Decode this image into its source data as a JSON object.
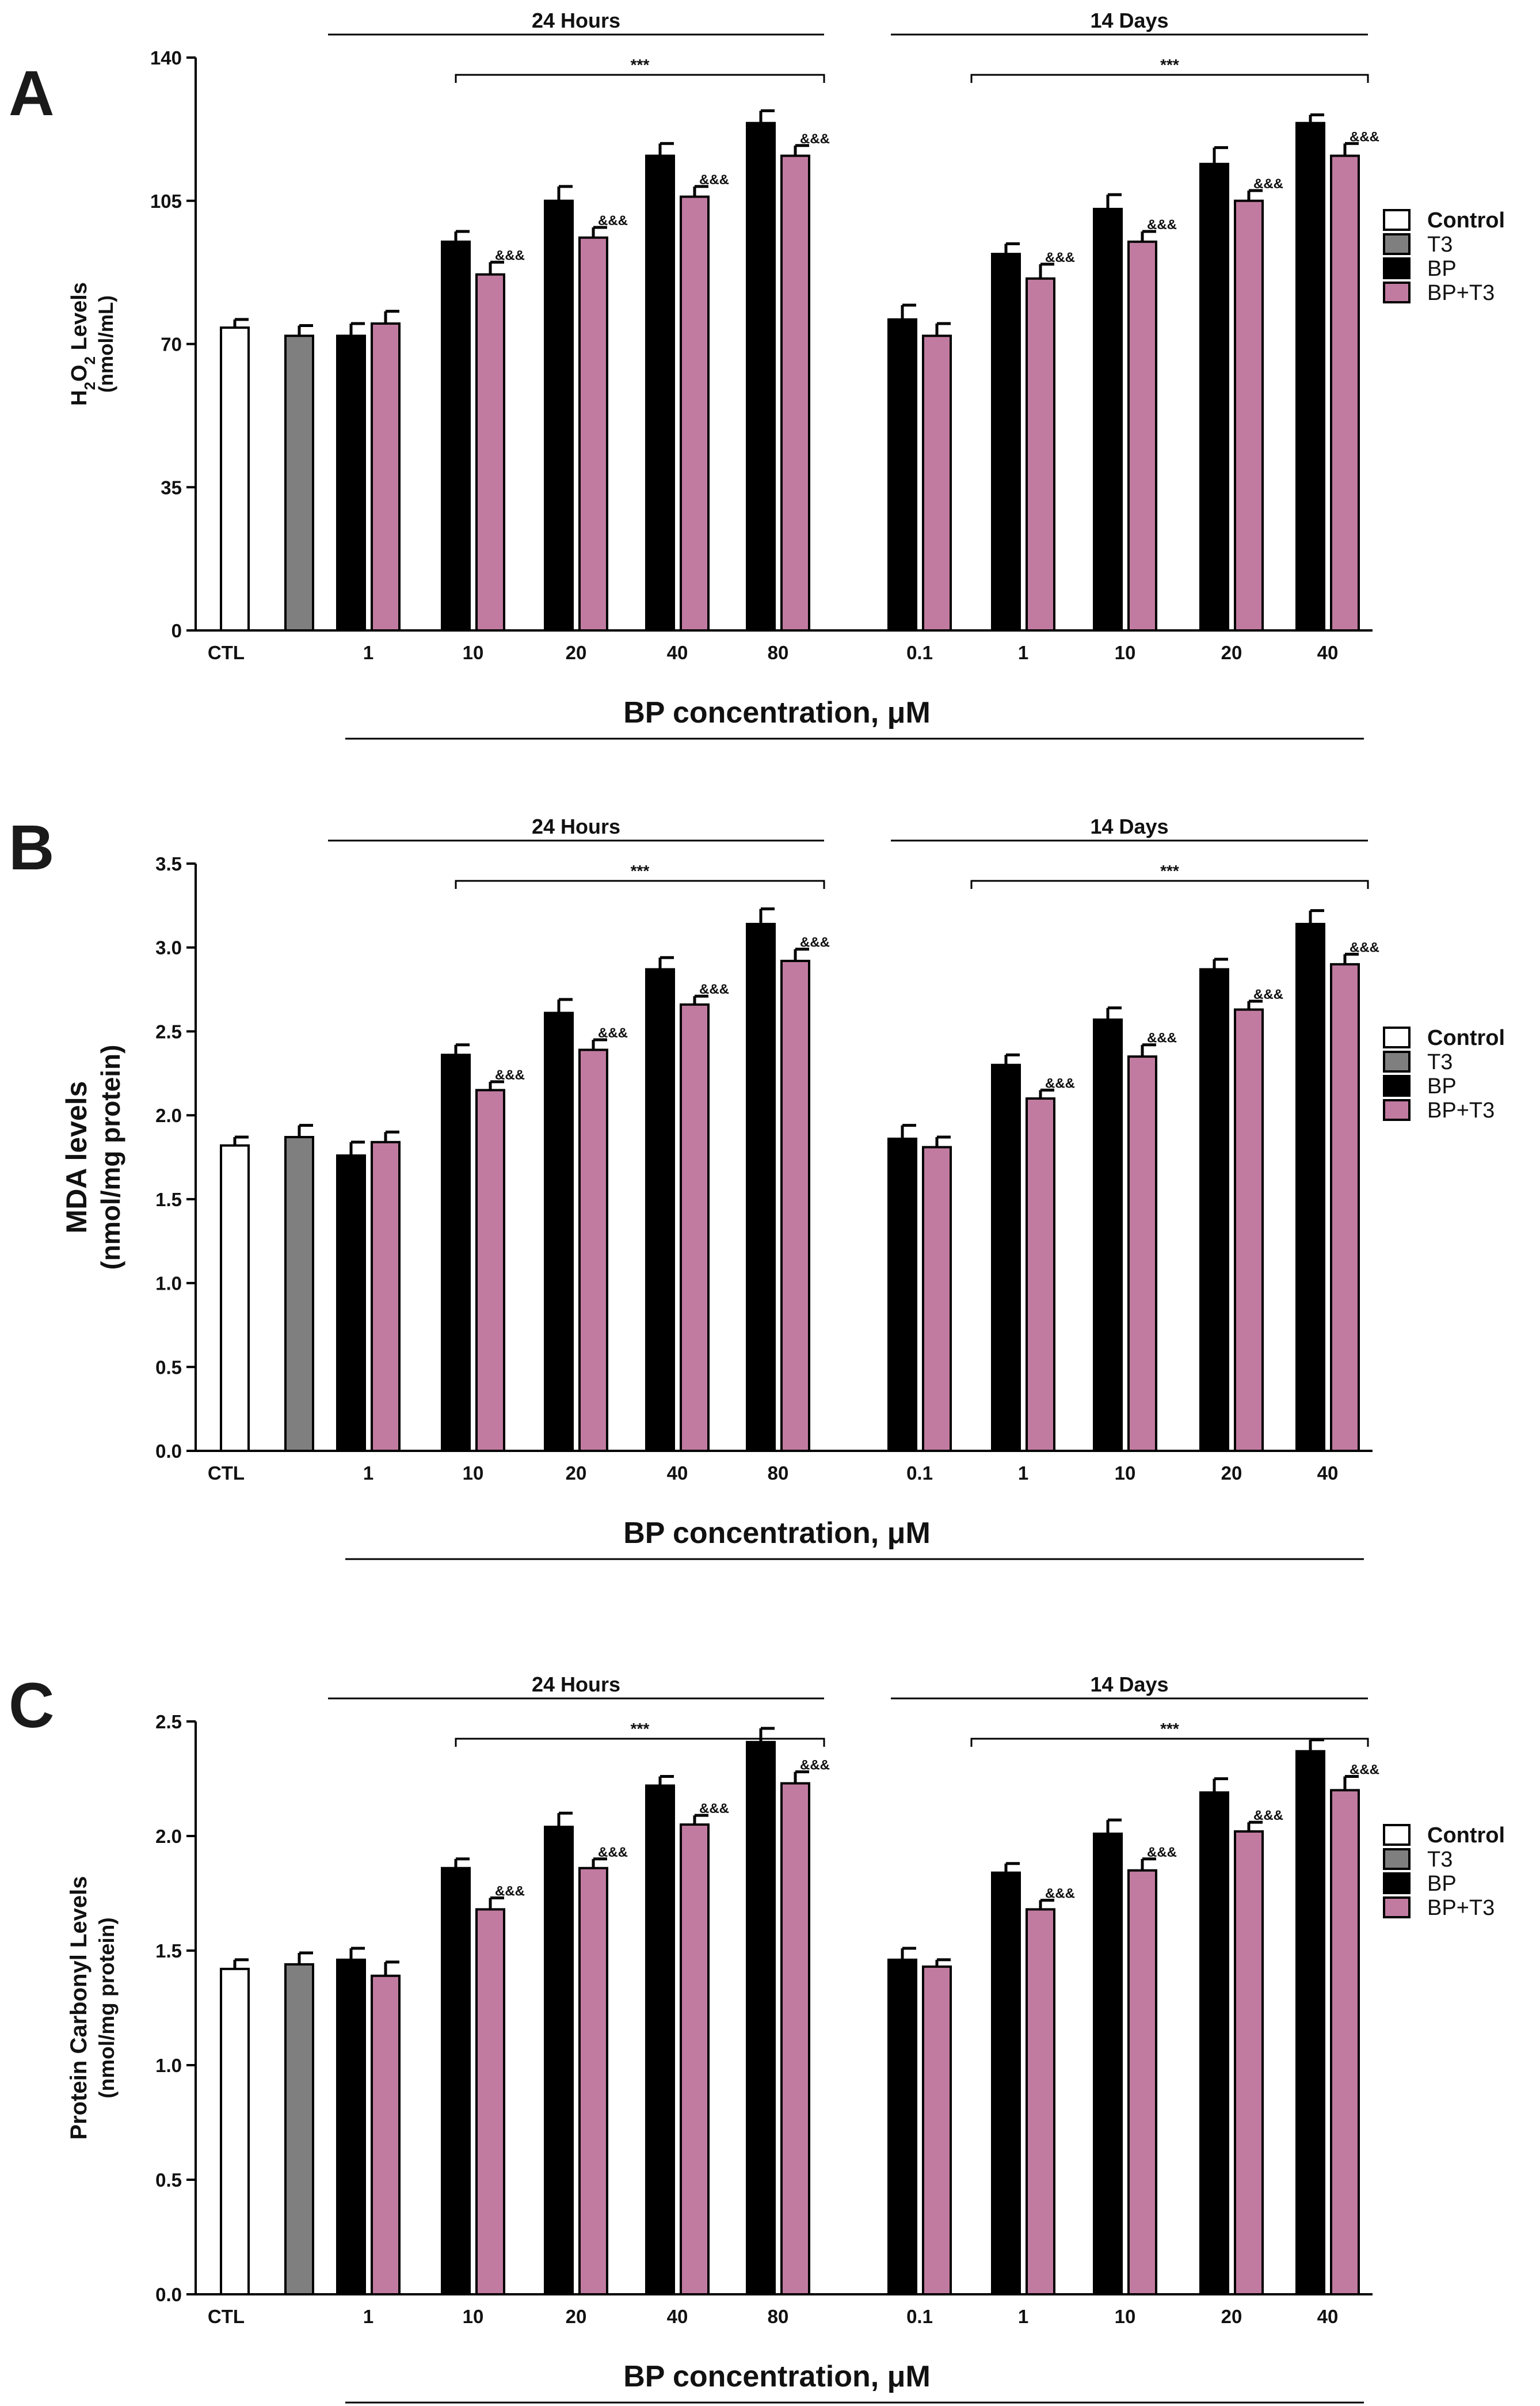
{
  "chart_data": [
    {
      "panel": "A",
      "type": "bar",
      "title": "",
      "ylabel_main": "H2O2 Levels",
      "ylabel_sub": "H",
      "ylabel_sub2": "2",
      "ylabel_sub3": "O",
      "ylabel_sub4": "2",
      "ylabel_sub5": " Levels",
      "ylabel_units": "(nmol/mL)",
      "ylim": [
        0,
        140
      ],
      "yticks": [
        "0",
        "35",
        "70",
        "105",
        "140"
      ],
      "ytick_values": [
        0,
        35,
        70,
        105,
        140
      ],
      "xlabel": "BP concentration, μM",
      "groups": [
        {
          "label": "24 Hours",
          "sig": "***"
        },
        {
          "label": "14 Days",
          "sig": "***"
        }
      ],
      "categories": [
        "CTL",
        "1",
        "10",
        "20",
        "40",
        "80",
        "0.1",
        "1",
        "10",
        "20",
        "40"
      ],
      "control": {
        "value": 74,
        "err": 2
      },
      "t3": {
        "value": 72,
        "err": 2.5
      },
      "bp": [
        72,
        95,
        105,
        116,
        124,
        76,
        92,
        103,
        114,
        124
      ],
      "bp_err": [
        3,
        2.5,
        3.5,
        3,
        3,
        3.5,
        2.5,
        3.5,
        4,
        2
      ],
      "bp_t3": [
        75,
        87,
        96,
        106,
        116,
        72,
        86,
        95,
        105,
        116
      ],
      "bp_t3_err": [
        3,
        3,
        2.5,
        2.5,
        2.5,
        3,
        3.5,
        2.5,
        2.5,
        3
      ],
      "amp_mark": "&&&",
      "amp_flags": [
        false,
        true,
        true,
        true,
        true,
        false,
        true,
        true,
        true,
        true
      ]
    },
    {
      "panel": "B",
      "type": "bar",
      "title": "",
      "ylabel_main": "MDA levels",
      "ylabel_units": "(nmol/mg protein)",
      "ylim": [
        0,
        3.5
      ],
      "yticks": [
        "0.0",
        "0.5",
        "1.0",
        "1.5",
        "2.0",
        "2.5",
        "3.0",
        "3.5"
      ],
      "ytick_values": [
        0,
        0.5,
        1.0,
        1.5,
        2.0,
        2.5,
        3.0,
        3.5
      ],
      "xlabel": "BP concentration, μM",
      "groups": [
        {
          "label": "24 Hours",
          "sig": "***"
        },
        {
          "label": "14 Days",
          "sig": "***"
        }
      ],
      "categories": [
        "CTL",
        "1",
        "10",
        "20",
        "40",
        "80",
        "0.1",
        "1",
        "10",
        "20",
        "40"
      ],
      "control": {
        "value": 1.82,
        "err": 0.05
      },
      "t3": {
        "value": 1.87,
        "err": 0.07
      },
      "bp": [
        1.76,
        2.36,
        2.61,
        2.87,
        3.14,
        1.86,
        2.3,
        2.57,
        2.87,
        3.14
      ],
      "bp_err": [
        0.08,
        0.06,
        0.08,
        0.07,
        0.09,
        0.08,
        0.06,
        0.07,
        0.06,
        0.08
      ],
      "bp_t3": [
        1.84,
        2.15,
        2.39,
        2.66,
        2.92,
        1.81,
        2.1,
        2.35,
        2.63,
        2.9
      ],
      "bp_t3_err": [
        0.06,
        0.05,
        0.06,
        0.05,
        0.07,
        0.06,
        0.05,
        0.07,
        0.05,
        0.06
      ],
      "amp_mark": "&&&",
      "amp_flags": [
        false,
        true,
        true,
        true,
        true,
        false,
        true,
        true,
        true,
        true
      ]
    },
    {
      "panel": "C",
      "type": "bar",
      "title": "",
      "ylabel_main": "Protein Carbonyl Levels",
      "ylabel_units": "(nmol/mg protein)",
      "ylim": [
        0,
        2.5
      ],
      "yticks": [
        "0.0",
        "0.5",
        "1.0",
        "1.5",
        "2.0",
        "2.5"
      ],
      "ytick_values": [
        0,
        0.5,
        1.0,
        1.5,
        2.0,
        2.5
      ],
      "xlabel": "BP concentration, μM",
      "groups": [
        {
          "label": "24 Hours",
          "sig": "***"
        },
        {
          "label": "14 Days",
          "sig": "***"
        }
      ],
      "categories": [
        "CTL",
        "1",
        "10",
        "20",
        "40",
        "80",
        "0.1",
        "1",
        "10",
        "20",
        "40"
      ],
      "control": {
        "value": 1.42,
        "err": 0.04
      },
      "t3": {
        "value": 1.44,
        "err": 0.05
      },
      "bp": [
        1.46,
        1.86,
        2.04,
        2.22,
        2.41,
        1.46,
        1.84,
        2.01,
        2.19,
        2.37
      ],
      "bp_err": [
        0.05,
        0.04,
        0.06,
        0.04,
        0.06,
        0.05,
        0.04,
        0.06,
        0.06,
        0.05
      ],
      "bp_t3": [
        1.39,
        1.68,
        1.86,
        2.05,
        2.23,
        1.43,
        1.68,
        1.85,
        2.02,
        2.2
      ],
      "bp_t3_err": [
        0.06,
        0.05,
        0.04,
        0.04,
        0.05,
        0.03,
        0.04,
        0.05,
        0.04,
        0.06
      ],
      "amp_mark": "&&&",
      "amp_flags": [
        false,
        true,
        true,
        true,
        true,
        false,
        true,
        true,
        true,
        true
      ]
    }
  ],
  "legend": {
    "items": [
      {
        "label": "Control",
        "color": "#ffffff",
        "bold": true
      },
      {
        "label": "T3",
        "color": "#7f7f7f",
        "bold": false
      },
      {
        "label": "BP",
        "color": "#000000",
        "bold": false
      },
      {
        "label": "BP+T3",
        "color": "#c17ba0",
        "bold": false
      }
    ]
  },
  "colors": {
    "control": "#ffffff",
    "t3": "#7f7f7f",
    "bp": "#000000",
    "bp_t3": "#c17ba0",
    "axis": "#000000"
  }
}
